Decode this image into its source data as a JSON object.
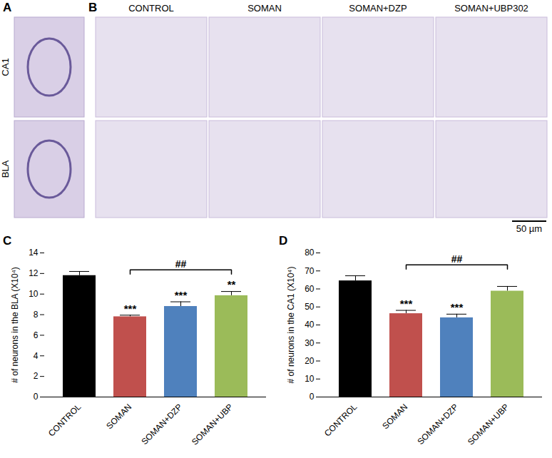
{
  "micrographs": {
    "panels": [
      "A",
      "B"
    ],
    "rows": [
      "CA1",
      "BLA"
    ],
    "columns": [
      "CONTROL",
      "SOMAN",
      "SOMAN+DZP",
      "SOMAN+UBP302"
    ],
    "scale_bar": "50 µm"
  },
  "chart_data": [
    {
      "type": "bar",
      "panel_label": "C",
      "y_label": "# of neurons in the BLA (X10⁴)",
      "categories": [
        "CONTROL",
        "SOMAN",
        "SOMAN+DZP",
        "SOMAN+UBP"
      ],
      "values": [
        11.8,
        7.8,
        8.8,
        9.85
      ],
      "errors": [
        0.4,
        0.15,
        0.45,
        0.4
      ],
      "colors": [
        "#000000",
        "#c0504d",
        "#4f81bd",
        "#9bbb59"
      ],
      "ylim": [
        0,
        14
      ],
      "yticks": [
        0,
        2,
        4,
        6,
        8,
        10,
        12,
        14
      ],
      "significance": [
        null,
        "***",
        "***",
        "**"
      ],
      "comparison": {
        "from": "SOMAN",
        "to": "SOMAN+UBP",
        "label": "##"
      }
    },
    {
      "type": "bar",
      "panel_label": "D",
      "y_label": "# of neurons in the CA1 (X10⁴)",
      "categories": [
        "CONTROL",
        "SOMAN",
        "SOMAN+DZP",
        "SOMAN+UBP"
      ],
      "values": [
        64.5,
        46.3,
        44.0,
        58.8
      ],
      "errors": [
        2.8,
        1.8,
        2.0,
        2.6
      ],
      "colors": [
        "#000000",
        "#c0504d",
        "#4f81bd",
        "#9bbb59"
      ],
      "ylim": [
        0,
        80
      ],
      "yticks": [
        0,
        10,
        20,
        30,
        40,
        50,
        60,
        70,
        80
      ],
      "significance": [
        null,
        "***",
        "***",
        null
      ],
      "comparison": {
        "from": "SOMAN",
        "to": "SOMAN+UBP",
        "label": "##"
      }
    }
  ]
}
